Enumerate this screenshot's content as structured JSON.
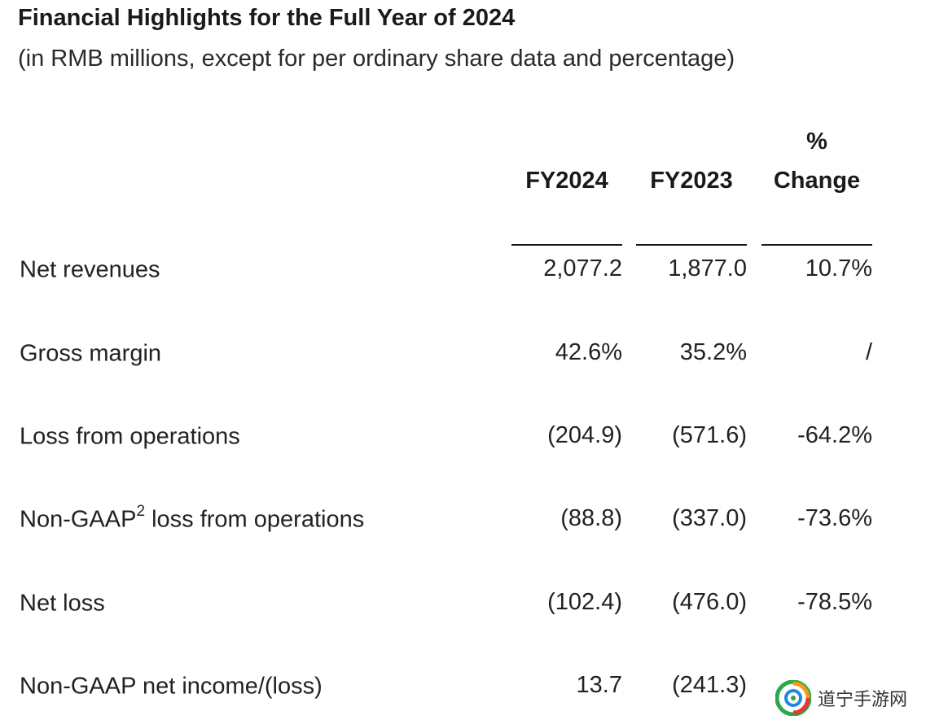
{
  "header": {
    "title": "Financial Highlights for the Full Year of 2024",
    "subtitle": "(in RMB millions, except for per ordinary share data and percentage)"
  },
  "table": {
    "columns": {
      "fy2024": "FY2024",
      "fy2023": "FY2023",
      "change_symbol": "%",
      "change_word": "Change"
    },
    "rows": [
      {
        "label": "Net revenues",
        "superscript": "",
        "label_suffix": "",
        "fy2024": "2,077.2",
        "fy2023": "1,877.0",
        "change": "10.7%"
      },
      {
        "label": "Gross margin",
        "superscript": "",
        "label_suffix": "",
        "fy2024": "42.6%",
        "fy2023": "35.2%",
        "change": "/"
      },
      {
        "label": "Loss from operations",
        "superscript": "",
        "label_suffix": "",
        "fy2024": "(204.9)",
        "fy2023": "(571.6)",
        "change": "-64.2%"
      },
      {
        "label": "Non-GAAP",
        "superscript": "2",
        "label_suffix": " loss from operations",
        "fy2024": "(88.8)",
        "fy2023": "(337.0)",
        "change": "-73.6%"
      },
      {
        "label": "Net loss",
        "superscript": "",
        "label_suffix": "",
        "fy2024": "(102.4)",
        "fy2023": "(476.0)",
        "change": "-78.5%"
      },
      {
        "label": "Non-GAAP net income/(loss)",
        "superscript": "",
        "label_suffix": "",
        "fy2024": "13.7",
        "fy2023": "(241.3)",
        "change": ""
      }
    ]
  },
  "watermark": {
    "text": "道宁手游网",
    "logo_icon": "swirl-logo-icon",
    "colors": [
      "#2aa84a",
      "#f39a1e",
      "#e53935",
      "#1e88e5"
    ]
  }
}
